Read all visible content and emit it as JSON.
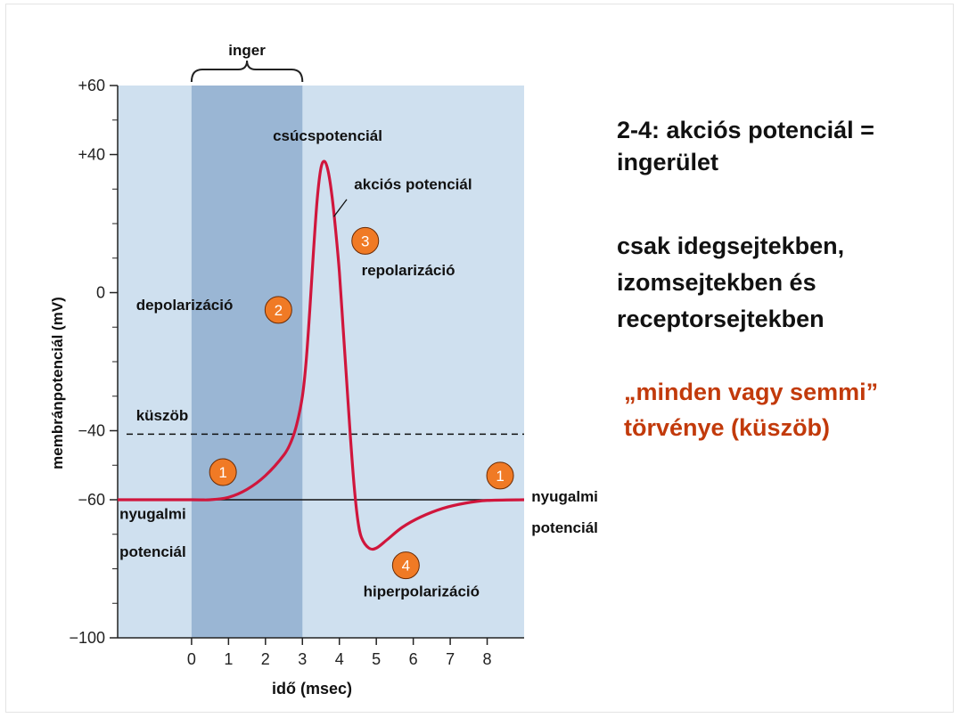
{
  "slide": {
    "title": "2-4: akciós potenciál = ingerület",
    "note": "csak idegsejtekben, izomsejtekben és receptorsejtekben",
    "law_line1": "„minden vagy semmi”",
    "law_line2": "törvénye (küszöb)",
    "law_color": "#c23a0b"
  },
  "chart_data": {
    "type": "line",
    "xlabel": "idő (msec)",
    "ylabel": "membránpotenciál (mV)",
    "xlim": [
      -2,
      9
    ],
    "ylim": [
      -100,
      60
    ],
    "x_ticks": [
      0,
      1,
      2,
      3,
      4,
      5,
      6,
      7,
      8
    ],
    "y_tick_labels": [
      {
        "value": 60,
        "label": "+60"
      },
      {
        "value": 40,
        "label": "+40"
      },
      {
        "value": 0,
        "label": "0"
      },
      {
        "value": -40,
        "label": "−40"
      },
      {
        "value": -60,
        "label": "−60"
      },
      {
        "value": -100,
        "label": "−100"
      }
    ],
    "y_minor_ticks": [
      50,
      30,
      20,
      10,
      -10,
      -20,
      -30,
      -50,
      -70,
      -80,
      -90
    ],
    "stimulus_band": {
      "label": "inger",
      "x_start": 0,
      "x_end": 3
    },
    "threshold": {
      "label": "küszöb",
      "value": -41
    },
    "resting_line": {
      "value": -60
    },
    "series": [
      {
        "color": "#d0163c",
        "points": [
          [
            -2,
            -60
          ],
          [
            0,
            -60
          ],
          [
            0.5,
            -60
          ],
          [
            1,
            -59.3
          ],
          [
            1.5,
            -57
          ],
          [
            2,
            -53
          ],
          [
            2.5,
            -47
          ],
          [
            2.7,
            -43
          ],
          [
            2.85,
            -38
          ],
          [
            3,
            -30
          ],
          [
            3.1,
            -20
          ],
          [
            3.2,
            -5
          ],
          [
            3.3,
            12
          ],
          [
            3.4,
            27
          ],
          [
            3.5,
            36
          ],
          [
            3.6,
            38
          ],
          [
            3.7,
            35
          ],
          [
            3.8,
            28
          ],
          [
            3.9,
            18
          ],
          [
            4,
            6
          ],
          [
            4.1,
            -10
          ],
          [
            4.2,
            -26
          ],
          [
            4.3,
            -42
          ],
          [
            4.4,
            -56
          ],
          [
            4.5,
            -66
          ],
          [
            4.6,
            -71
          ],
          [
            4.8,
            -74
          ],
          [
            5,
            -74
          ],
          [
            5.3,
            -71.5
          ],
          [
            5.7,
            -68
          ],
          [
            6.2,
            -65
          ],
          [
            6.8,
            -62.5
          ],
          [
            7.4,
            -61
          ],
          [
            8,
            -60.2
          ],
          [
            9,
            -60
          ]
        ]
      }
    ],
    "annotations": [
      {
        "text": "csúcspotenciál",
        "x": 2.2,
        "y": 44
      },
      {
        "text": "akciós potenciál",
        "x": 4.4,
        "y": 30
      },
      {
        "text": "repolarizáció",
        "x": 4.6,
        "y": 5
      },
      {
        "text": "depolarizáció",
        "x": -1.5,
        "y": -5
      },
      {
        "text": "küszöb",
        "x": -1.5,
        "y": -37
      },
      {
        "text": "nyugalmi",
        "x": -1.95,
        "y": -65.5
      },
      {
        "text": "potenciál",
        "x": -1.95,
        "y": -76.5
      },
      {
        "text": "nyugalmi",
        "x": 9.2,
        "y": -60.5
      },
      {
        "text": "potenciál",
        "x": 9.2,
        "y": -69.5
      },
      {
        "text": "hiperpolarizáció",
        "x": 4.65,
        "y": -88
      }
    ],
    "phase_markers": [
      {
        "label": "1",
        "x": 0.85,
        "y": -52
      },
      {
        "label": "2",
        "x": 2.35,
        "y": -5
      },
      {
        "label": "3",
        "x": 4.7,
        "y": 15
      },
      {
        "label": "4",
        "x": 5.8,
        "y": -79
      },
      {
        "label": "1",
        "x": 8.35,
        "y": -53
      }
    ],
    "colors": {
      "background": "#cfe0ef",
      "stimulus": "#9ab6d4",
      "curve": "#d0163c",
      "marker_fill": "#f07a25"
    }
  }
}
